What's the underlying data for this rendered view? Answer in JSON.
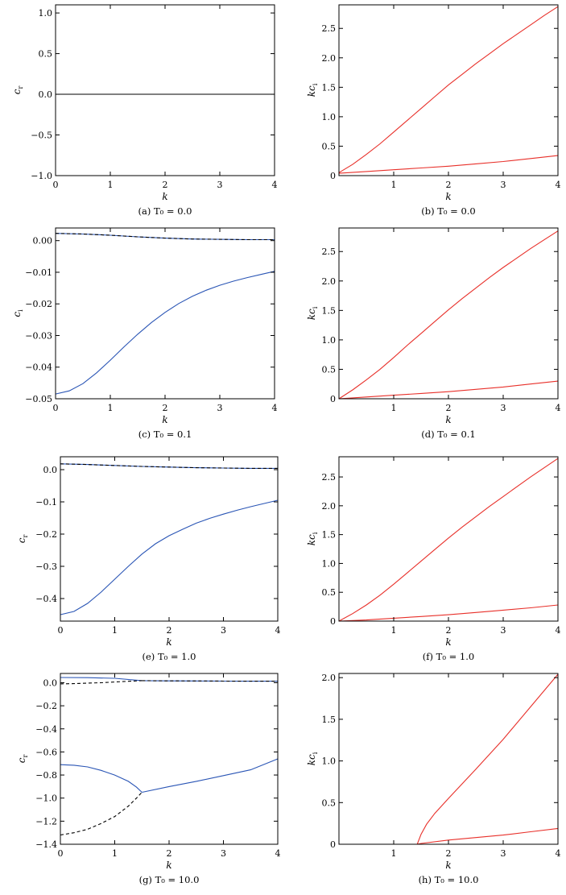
{
  "chart_data": [
    {
      "type": "line",
      "caption": "(a) T₀ = 0.0",
      "xlabel": "k",
      "ylabel": "c",
      "ylabel_sub": "r",
      "xlim": [
        0,
        4
      ],
      "ylim": [
        -1.0,
        1.1
      ],
      "xticks": [
        0,
        1,
        2,
        3,
        4
      ],
      "xtick_labels": [
        "0",
        "1",
        "2",
        "3",
        "4"
      ],
      "yticks": [
        -1.0,
        -0.5,
        0.0,
        0.5,
        1.0
      ],
      "ytick_labels": [
        "−1.0",
        "−0.5",
        "0.0",
        "0.5",
        "1.0"
      ],
      "series": [
        {
          "color": "#000000",
          "dash": false,
          "x": [
            0,
            4
          ],
          "y": [
            0,
            0
          ]
        }
      ]
    },
    {
      "type": "line",
      "caption": "(b) T₀ = 0.0",
      "xlabel": "k",
      "ylabel": "kc",
      "ylabel_sub": "i",
      "xlim": [
        0,
        4
      ],
      "ylim": [
        0,
        2.9
      ],
      "xticks": [
        1,
        2,
        3,
        4
      ],
      "xtick_labels": [
        "1",
        "2",
        "3",
        "4"
      ],
      "yticks": [
        0,
        0.5,
        1.0,
        1.5,
        2.0,
        2.5
      ],
      "ytick_labels": [
        "0",
        "0.5",
        "1.0",
        "1.5",
        "2.0",
        "2.5"
      ],
      "series": [
        {
          "color": "#e8302a",
          "dash": false,
          "x": [
            0,
            0.25,
            0.5,
            0.75,
            1,
            1.25,
            1.5,
            1.75,
            2,
            2.25,
            2.5,
            2.75,
            3,
            3.25,
            3.5,
            3.75,
            4
          ],
          "y": [
            0.05,
            0.19,
            0.36,
            0.54,
            0.74,
            0.94,
            1.14,
            1.34,
            1.54,
            1.72,
            1.9,
            2.07,
            2.24,
            2.4,
            2.56,
            2.72,
            2.87
          ]
        },
        {
          "color": "#e8302a",
          "dash": false,
          "x": [
            0,
            0.5,
            1,
            1.5,
            2,
            2.5,
            3,
            3.5,
            4
          ],
          "y": [
            0.04,
            0.07,
            0.1,
            0.13,
            0.16,
            0.2,
            0.24,
            0.29,
            0.34
          ]
        }
      ]
    },
    {
      "type": "line",
      "caption": "(c) T₀ = 0.1",
      "xlabel": "k",
      "ylabel": "c",
      "ylabel_sub": "i",
      "xlim": [
        0,
        4
      ],
      "ylim": [
        -0.05,
        0.004
      ],
      "xticks": [
        0,
        1,
        2,
        3,
        4
      ],
      "xtick_labels": [
        "0",
        "1",
        "2",
        "3",
        "4"
      ],
      "yticks": [
        -0.05,
        -0.04,
        -0.03,
        -0.02,
        -0.01,
        0.0
      ],
      "ytick_labels": [
        "−0.05",
        "−0.04",
        "−0.03",
        "−0.02",
        "−0.01",
        "0.00"
      ],
      "series": [
        {
          "color": "#2a55b5",
          "dash": false,
          "x": [
            0,
            0.5,
            1,
            1.5,
            2,
            2.5,
            3,
            3.5,
            4
          ],
          "y": [
            0.0023,
            0.0021,
            0.0017,
            0.0012,
            0.0008,
            0.0005,
            0.0004,
            0.0003,
            0.0003
          ]
        },
        {
          "color": "#000000",
          "dash": true,
          "x": [
            0,
            0.5,
            1,
            1.5,
            2,
            2.5,
            3,
            3.5,
            4
          ],
          "y": [
            0.0023,
            0.0021,
            0.0017,
            0.0012,
            0.0008,
            0.0005,
            0.0004,
            0.0003,
            0.0003
          ]
        },
        {
          "color": "#2a55b5",
          "dash": false,
          "x": [
            0,
            0.25,
            0.5,
            0.75,
            1,
            1.25,
            1.5,
            1.75,
            2,
            2.25,
            2.5,
            2.75,
            3,
            3.25,
            3.5,
            3.75,
            4
          ],
          "y": [
            -0.0485,
            -0.0475,
            -0.0452,
            -0.0418,
            -0.0378,
            -0.0336,
            -0.0296,
            -0.0259,
            -0.0227,
            -0.0199,
            -0.0176,
            -0.0157,
            -0.0141,
            -0.0128,
            -0.0117,
            -0.0107,
            -0.0097
          ]
        }
      ]
    },
    {
      "type": "line",
      "caption": "(d) T₀ = 0.1",
      "xlabel": "k",
      "ylabel": "kc",
      "ylabel_sub": "i",
      "xlim": [
        0,
        4
      ],
      "ylim": [
        0,
        2.9
      ],
      "xticks": [
        1,
        2,
        3,
        4
      ],
      "xtick_labels": [
        "1",
        "2",
        "3",
        "4"
      ],
      "yticks": [
        0,
        0.5,
        1.0,
        1.5,
        2.0,
        2.5
      ],
      "ytick_labels": [
        "0",
        "0.5",
        "1.0",
        "1.5",
        "2.0",
        "2.5"
      ],
      "series": [
        {
          "color": "#e8302a",
          "dash": false,
          "x": [
            0,
            0.25,
            0.5,
            0.75,
            1,
            1.25,
            1.5,
            1.75,
            2,
            2.25,
            2.5,
            2.75,
            3,
            3.25,
            3.5,
            3.75,
            4
          ],
          "y": [
            0.0,
            0.15,
            0.32,
            0.5,
            0.7,
            0.91,
            1.11,
            1.31,
            1.51,
            1.7,
            1.88,
            2.06,
            2.23,
            2.39,
            2.55,
            2.7,
            2.85
          ]
        },
        {
          "color": "#e8302a",
          "dash": false,
          "x": [
            0,
            0.5,
            1,
            1.5,
            2,
            2.5,
            3,
            3.5,
            4
          ],
          "y": [
            0.0,
            0.03,
            0.06,
            0.09,
            0.12,
            0.16,
            0.2,
            0.25,
            0.3
          ]
        }
      ]
    },
    {
      "type": "line",
      "caption": "(e) T₀ = 1.0",
      "xlabel": "k",
      "ylabel": "c",
      "ylabel_sub": "r",
      "xlim": [
        0,
        4
      ],
      "ylim": [
        -0.47,
        0.04
      ],
      "xticks": [
        0,
        1,
        2,
        3,
        4
      ],
      "xtick_labels": [
        "0",
        "1",
        "2",
        "3",
        "4"
      ],
      "yticks": [
        -0.4,
        -0.3,
        -0.2,
        -0.1,
        0.0
      ],
      "ytick_labels": [
        "−0.4",
        "−0.3",
        "−0.2",
        "−0.1",
        "0.0"
      ],
      "series": [
        {
          "color": "#2a55b5",
          "dash": false,
          "x": [
            0,
            0.5,
            1,
            1.5,
            2,
            2.5,
            3,
            3.5,
            4
          ],
          "y": [
            0.018,
            0.016,
            0.013,
            0.01,
            0.008,
            0.006,
            0.005,
            0.004,
            0.004
          ]
        },
        {
          "color": "#000000",
          "dash": true,
          "x": [
            0,
            0.5,
            1,
            1.5,
            2,
            2.5,
            3,
            3.5,
            4
          ],
          "y": [
            0.018,
            0.016,
            0.013,
            0.01,
            0.008,
            0.006,
            0.005,
            0.004,
            0.004
          ]
        },
        {
          "color": "#2a55b5",
          "dash": false,
          "x": [
            0,
            0.25,
            0.5,
            0.75,
            1,
            1.25,
            1.5,
            1.75,
            2,
            2.25,
            2.5,
            2.75,
            3,
            3.25,
            3.5,
            3.75,
            4
          ],
          "y": [
            -0.45,
            -0.44,
            -0.415,
            -0.38,
            -0.34,
            -0.3,
            -0.262,
            -0.23,
            -0.205,
            -0.185,
            -0.166,
            -0.151,
            -0.138,
            -0.126,
            -0.115,
            -0.105,
            -0.095
          ]
        }
      ]
    },
    {
      "type": "line",
      "caption": "(f) T₀ = 1.0",
      "xlabel": "k",
      "ylabel": "kc",
      "ylabel_sub": "i",
      "xlim": [
        0,
        4
      ],
      "ylim": [
        0,
        2.85
      ],
      "xticks": [
        1,
        2,
        3,
        4
      ],
      "xtick_labels": [
        "1",
        "2",
        "3",
        "4"
      ],
      "yticks": [
        0,
        0.5,
        1.0,
        1.5,
        2.0,
        2.5
      ],
      "ytick_labels": [
        "0",
        "0.5",
        "1.0",
        "1.5",
        "2.0",
        "2.5"
      ],
      "series": [
        {
          "color": "#e8302a",
          "dash": false,
          "x": [
            0,
            0.25,
            0.5,
            0.75,
            1,
            1.25,
            1.5,
            1.75,
            2,
            2.25,
            2.5,
            2.75,
            3,
            3.25,
            3.5,
            3.75,
            4
          ],
          "y": [
            0.0,
            0.13,
            0.28,
            0.45,
            0.64,
            0.84,
            1.04,
            1.24,
            1.44,
            1.63,
            1.81,
            1.99,
            2.16,
            2.33,
            2.5,
            2.66,
            2.82
          ]
        },
        {
          "color": "#e8302a",
          "dash": false,
          "x": [
            0,
            0.5,
            1,
            1.5,
            2,
            2.5,
            3,
            3.5,
            4
          ],
          "y": [
            0.0,
            0.02,
            0.05,
            0.08,
            0.11,
            0.15,
            0.19,
            0.23,
            0.28
          ]
        }
      ]
    },
    {
      "type": "line",
      "caption": "(g) T₀ = 10.0",
      "xlabel": "k",
      "ylabel": "c",
      "ylabel_sub": "r",
      "xlim": [
        0,
        4
      ],
      "ylim": [
        -1.4,
        0.08
      ],
      "xticks": [
        0,
        1,
        2,
        3,
        4
      ],
      "xtick_labels": [
        "0",
        "1",
        "2",
        "3",
        "4"
      ],
      "yticks": [
        -1.4,
        -1.2,
        -1.0,
        -0.8,
        -0.6,
        -0.4,
        -0.2,
        0.0
      ],
      "ytick_labels": [
        "−1.4",
        "−1.2",
        "−1.0",
        "−0.8",
        "−0.6",
        "−0.4",
        "−0.2",
        "0.0"
      ],
      "series": [
        {
          "color": "#2a55b5",
          "dash": false,
          "x": [
            0,
            0.5,
            1,
            1.5,
            2,
            2.5,
            3,
            3.5,
            4
          ],
          "y": [
            0.045,
            0.044,
            0.038,
            0.018,
            0.016,
            0.015,
            0.014,
            0.013,
            0.013
          ]
        },
        {
          "color": "#000000",
          "dash": true,
          "x": [
            0,
            0.25,
            0.5,
            0.75,
            1,
            1.25,
            1.5
          ],
          "y": [
            -0.01,
            -0.008,
            -0.004,
            0.0,
            0.006,
            0.012,
            0.018
          ]
        },
        {
          "color": "#000000",
          "dash": true,
          "x": [
            1.5,
            2,
            2.5,
            3,
            3.5,
            4
          ],
          "y": [
            0.018,
            0.016,
            0.015,
            0.014,
            0.013,
            0.013
          ]
        },
        {
          "color": "#2a55b5",
          "dash": false,
          "x": [
            0,
            0.25,
            0.5,
            0.75,
            1,
            1.25,
            1.4,
            1.5
          ],
          "y": [
            -0.71,
            -0.715,
            -0.73,
            -0.76,
            -0.8,
            -0.855,
            -0.905,
            -0.95
          ]
        },
        {
          "color": "#000000",
          "dash": true,
          "x": [
            0,
            0.25,
            0.5,
            0.75,
            1,
            1.25,
            1.4,
            1.5
          ],
          "y": [
            -1.32,
            -1.3,
            -1.27,
            -1.22,
            -1.16,
            -1.07,
            -1.0,
            -0.95
          ]
        },
        {
          "color": "#2a55b5",
          "dash": false,
          "x": [
            1.5,
            2,
            2.5,
            3,
            3.5,
            4
          ],
          "y": [
            -0.95,
            -0.9,
            -0.855,
            -0.805,
            -0.755,
            -0.66
          ]
        }
      ]
    },
    {
      "type": "line",
      "caption": "(h) T₀ = 10.0",
      "xlabel": "k",
      "ylabel": "kc",
      "ylabel_sub": "i",
      "xlim": [
        0,
        4
      ],
      "ylim": [
        0,
        2.05
      ],
      "xticks": [
        1,
        2,
        3,
        4
      ],
      "xtick_labels": [
        "1",
        "2",
        "3",
        "4"
      ],
      "yticks": [
        0,
        0.5,
        1.0,
        1.5,
        2.0
      ],
      "ytick_labels": [
        "0",
        "0.5",
        "1.0",
        "1.5",
        "2.0"
      ],
      "series": [
        {
          "color": "#e8302a",
          "dash": false,
          "x": [
            1.43,
            1.5,
            1.6,
            1.75,
            2,
            2.5,
            3,
            3.5,
            4
          ],
          "y": [
            0.0,
            0.12,
            0.24,
            0.37,
            0.55,
            0.9,
            1.26,
            1.65,
            2.04
          ]
        },
        {
          "color": "#e8302a",
          "dash": false,
          "x": [
            1.43,
            1.5,
            2,
            2.5,
            3,
            3.5,
            4
          ],
          "y": [
            0.0,
            0.01,
            0.05,
            0.08,
            0.11,
            0.15,
            0.19
          ]
        }
      ]
    }
  ]
}
